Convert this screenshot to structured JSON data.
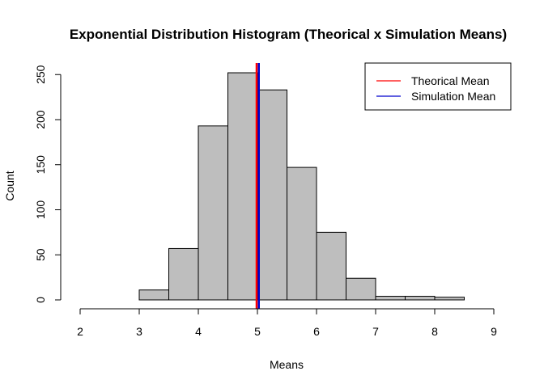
{
  "chart_data": {
    "type": "bar",
    "title": "Exponential Distribution Histogram (Theorical x Simulation Means)",
    "xlabel": "Means",
    "ylabel": "Count",
    "xlim": [
      2,
      9
    ],
    "ylim": [
      0,
      260
    ],
    "x_ticks": [
      "2",
      "3",
      "4",
      "5",
      "6",
      "7",
      "8",
      "9"
    ],
    "y_ticks": [
      "0",
      "50",
      "100",
      "150",
      "200",
      "250"
    ],
    "bins": [
      {
        "start": 3.0,
        "end": 3.5,
        "count": 11
      },
      {
        "start": 3.5,
        "end": 4.0,
        "count": 57
      },
      {
        "start": 4.0,
        "end": 4.5,
        "count": 193
      },
      {
        "start": 4.5,
        "end": 5.0,
        "count": 252
      },
      {
        "start": 5.0,
        "end": 5.5,
        "count": 233
      },
      {
        "start": 5.5,
        "end": 6.0,
        "count": 147
      },
      {
        "start": 6.0,
        "end": 6.5,
        "count": 75
      },
      {
        "start": 6.5,
        "end": 7.0,
        "count": 24
      },
      {
        "start": 7.0,
        "end": 7.5,
        "count": 4
      },
      {
        "start": 7.5,
        "end": 8.0,
        "count": 4
      },
      {
        "start": 8.0,
        "end": 8.5,
        "count": 3
      }
    ],
    "bar_color": "#bebebe",
    "grid": false,
    "lines": [
      {
        "name": "Theorical Mean",
        "x": 5.0,
        "color": "#ff0000"
      },
      {
        "name": "Simulation Mean",
        "x": 5.01,
        "color": "#0000cd"
      }
    ],
    "legend": {
      "position": "top-right",
      "entries": [
        {
          "label": "Theorical Mean",
          "color": "#ff0000"
        },
        {
          "label": "Simulation Mean",
          "color": "#0000cd"
        }
      ]
    }
  }
}
